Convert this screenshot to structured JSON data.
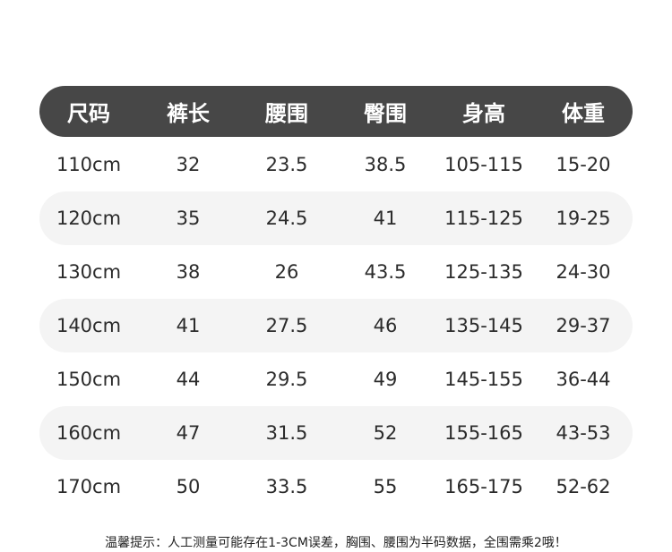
{
  "headers": [
    "尺码",
    "裤长",
    "腰围",
    "臀围",
    "身高",
    "体重"
  ],
  "rows": [
    [
      "110cm",
      "32",
      "23.5",
      "38.5",
      "105-115",
      "15-20"
    ],
    [
      "120cm",
      "35",
      "24.5",
      "41",
      "115-125",
      "19-25"
    ],
    [
      "130cm",
      "38",
      "26",
      "43.5",
      "125-135",
      "24-30"
    ],
    [
      "140cm",
      "41",
      "27.5",
      "46",
      "135-145",
      "29-37"
    ],
    [
      "150cm",
      "44",
      "29.5",
      "49",
      "145-155",
      "36-44"
    ],
    [
      "160cm",
      "47",
      "31.5",
      "52",
      "155-165",
      "43-53"
    ],
    [
      "170cm",
      "50",
      "33.5",
      "55",
      "165-175",
      "52-62"
    ]
  ],
  "note": "温馨提示：人工测量可能存在1-3CM误差，胸围、腰围为半码数据，全围需乘2哦！",
  "colors": {
    "header_bg": "#474747",
    "stripe": "#f4f4f4"
  }
}
